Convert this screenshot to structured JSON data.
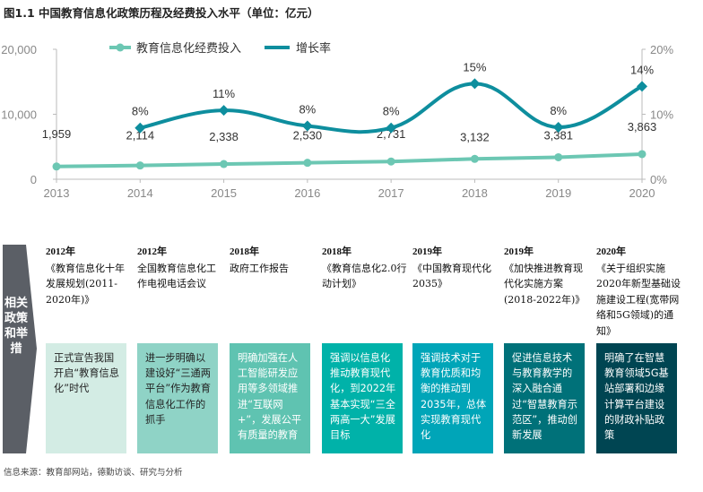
{
  "title": "图1.1 中国教育信息化政策历程及经费投入水平（单位：亿元）",
  "chart_data": {
    "type": "line",
    "title": "图1.1 中国教育信息化政策历程及经费投入水平（单位：亿元）",
    "legend_position": "top",
    "grid": false,
    "x": [
      "2013",
      "2014",
      "2015",
      "2016",
      "2017",
      "2018",
      "2019",
      "2020"
    ],
    "y_left": {
      "range": [
        0,
        20000
      ],
      "ticks": [
        "0",
        "10,000",
        "20,000"
      ]
    },
    "y_right": {
      "range": [
        0,
        20
      ],
      "ticks": [
        "0%",
        "10%",
        "20%"
      ]
    },
    "series": [
      {
        "name": "教育信息化经费投入",
        "axis": "left",
        "color": "#6cc7b3",
        "marker": "circle",
        "values": [
          1959,
          2114,
          2338,
          2530,
          2731,
          3132,
          3381,
          3863
        ],
        "labels": [
          "1,959",
          "2,114",
          "2,338",
          "2,530",
          "2,731",
          "3,132",
          "3,381",
          "3,863"
        ]
      },
      {
        "name": "增长率",
        "axis": "right",
        "color": "#0e8e9e",
        "marker": "diamond",
        "smooth": true,
        "values": [
          null,
          7.9,
          10.6,
          8.2,
          7.9,
          14.7,
          8.0,
          14.3
        ],
        "labels": [
          "",
          "8%",
          "11%",
          "8%",
          "8%",
          "15%",
          "8%",
          "14%"
        ]
      }
    ]
  },
  "timeline": {
    "side_label": "相关政策和举措",
    "policies": [
      {
        "year": "2012年",
        "text": "《教育信息化十年发展规划(2011-2020年)》"
      },
      {
        "year": "2012年",
        "text": "全国教育信息化工作电视电话会议"
      },
      {
        "year": "2018年",
        "text": "政府工作报告"
      },
      {
        "year": "2018年",
        "text": "《教育信息化2.0行动计划》"
      },
      {
        "year": "2019年",
        "text": "《中国教育现代化2035》"
      },
      {
        "year": "2019年",
        "text": "《加快推进教育现代化实施方案 (2018-2022年)》"
      },
      {
        "year": "2020年",
        "text": "《关于组织实施2020年新型基础设施建设工程(宽带网络和5G领域)的通知》"
      }
    ],
    "cards": [
      {
        "text": "正式宣告我国开启“教育信息化”时代",
        "color": "#d3ece4",
        "text_color": "#222222"
      },
      {
        "text": "进一步明确以建设好“三通两平台”作为教育信息化工作的抓手",
        "color": "#8fd3c6",
        "text_color": "#222222"
      },
      {
        "text": "明确加强在人工智能研发应用等多领域推进“互联网+”，发展公平有质量的教育",
        "color": "#5fc3b1",
        "text_color": "#ffffff"
      },
      {
        "text": "强调以信息化推动教育现代化，到2022年基本实现“三全两高一大”发展目标",
        "color": "#00b2a9",
        "text_color": "#ffffff"
      },
      {
        "text": "强调技术对于教育优质和均衡的推动到2035年，总体实现教育现代化",
        "color": "#00a5b8",
        "text_color": "#ffffff"
      },
      {
        "text": "促进信息技术与教育教学的深入融合通过“智慧教育示范区”，推动创新发展",
        "color": "#007179",
        "text_color": "#ffffff"
      },
      {
        "text": "明确了在智慧教育领域5G基站部署和边缘计算平台建设的财政补贴政策",
        "color": "#004552",
        "text_color": "#ffffff"
      }
    ]
  },
  "source": "信息来源：教育部网站，德勤访谈、研究与分析"
}
